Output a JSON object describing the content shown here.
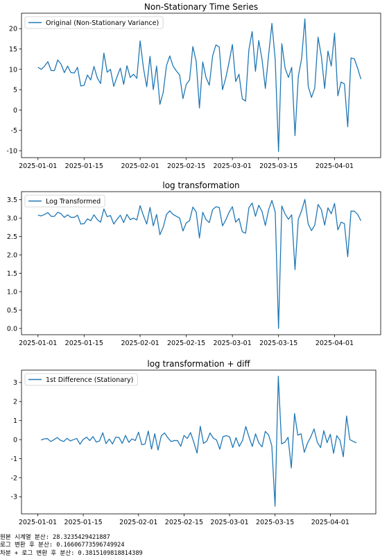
{
  "colors": {
    "line": "#1f77b4",
    "axis": "#000000"
  },
  "chart_data": [
    {
      "type": "line",
      "title": "Non-Stationary Time Series",
      "x_start": "2025-01-01",
      "x_end": "2025-04-10",
      "xticks": [
        "2025-01-01",
        "2025-01-15",
        "2025-02-01",
        "2025-02-15",
        "2025-03-01",
        "2025-03-15",
        "2025-04-01"
      ],
      "xlim": [
        "2024-12-27",
        "2025-04-15"
      ],
      "ylim": [
        -11.7,
        23.8
      ],
      "yticks": [
        -10,
        -5,
        0,
        5,
        10,
        15,
        20
      ],
      "legend": "upper left",
      "series": [
        {
          "name": "Original (Non-Stationary Variance)",
          "values": [
            10.5,
            10.0,
            10.8,
            11.9,
            9.7,
            9.7,
            12.3,
            11.3,
            9.2,
            10.8,
            9.2,
            9.1,
            10.5,
            5.9,
            6.1,
            8.6,
            7.4,
            10.7,
            7.9,
            6.5,
            14.0,
            9.3,
            10.0,
            5.8,
            8.2,
            10.3,
            6.3,
            10.9,
            8.0,
            8.8,
            7.8,
            17.0,
            10.4,
            5.7,
            13.2,
            5.0,
            10.8,
            1.4,
            4.3,
            10.9,
            13.3,
            10.8,
            9.6,
            8.6,
            2.8,
            6.3,
            7.4,
            15.6,
            12.0,
            0.5,
            11.8,
            8.0,
            6.1,
            13.3,
            16.0,
            15.5,
            5.0,
            7.9,
            11.8,
            16.1,
            7.0,
            8.8,
            2.8,
            2.2,
            14.8,
            19.3,
            9.5,
            17.1,
            12.4,
            5.3,
            13.6,
            21.3,
            12.3,
            -10.2,
            16.3,
            10.3,
            8.0,
            10.5,
            -6.3,
            8.2,
            12.6,
            22.4,
            5.9,
            3.1,
            5.4,
            17.9,
            13.2,
            5.3,
            14.5,
            10.8,
            18.9,
            3.5,
            6.9,
            6.4,
            -4.1,
            12.8,
            12.6,
            10.3,
            7.6
          ]
        }
      ]
    },
    {
      "type": "line",
      "title": "log transformation",
      "x_start": "2025-01-01",
      "x_end": "2025-04-10",
      "xticks": [
        "2025-01-01",
        "2025-01-15",
        "2025-02-01",
        "2025-02-15",
        "2025-03-01",
        "2025-03-15",
        "2025-04-01"
      ],
      "xlim": [
        "2024-12-27",
        "2025-04-15"
      ],
      "ylim": [
        -0.17,
        3.72
      ],
      "yticks": [
        0.0,
        0.5,
        1.0,
        1.5,
        2.0,
        2.5,
        3.0,
        3.5
      ],
      "legend": "upper left",
      "series": [
        {
          "name": "Log Transformed",
          "values": [
            3.08,
            3.06,
            3.1,
            3.15,
            3.05,
            3.05,
            3.16,
            3.12,
            3.02,
            3.09,
            3.02,
            3.02,
            3.08,
            2.84,
            2.85,
            2.98,
            2.93,
            3.09,
            2.96,
            2.89,
            3.25,
            3.04,
            3.07,
            2.84,
            2.97,
            3.08,
            2.88,
            3.1,
            2.96,
            3.0,
            2.95,
            3.34,
            3.07,
            2.84,
            3.29,
            2.79,
            3.1,
            2.55,
            2.75,
            3.1,
            3.2,
            3.1,
            3.05,
            3.0,
            2.65,
            2.87,
            2.93,
            3.3,
            3.17,
            2.46,
            3.16,
            2.96,
            2.88,
            3.23,
            3.31,
            3.29,
            2.79,
            2.95,
            3.16,
            3.31,
            2.89,
            2.99,
            2.63,
            2.59,
            3.28,
            3.41,
            3.05,
            3.35,
            3.18,
            2.8,
            3.23,
            3.48,
            3.16,
            0.0,
            3.33,
            3.11,
            2.97,
            3.09,
            1.6,
            2.97,
            3.2,
            3.51,
            2.84,
            2.66,
            2.81,
            3.37,
            3.23,
            2.81,
            3.28,
            3.12,
            3.4,
            2.68,
            2.89,
            2.85,
            1.95,
            3.19,
            3.19,
            3.1,
            2.93
          ]
        }
      ]
    },
    {
      "type": "line",
      "title": "log transformation + diff",
      "x_start": "2025-01-02",
      "x_end": "2025-04-10",
      "xticks": [
        "2025-01-01",
        "2025-01-15",
        "2025-02-01",
        "2025-02-15",
        "2025-03-01",
        "2025-03-15",
        "2025-04-01"
      ],
      "xlim": [
        "2024-12-27",
        "2025-04-15"
      ],
      "ylim": [
        -3.9,
        3.65
      ],
      "yticks": [
        -3,
        -2,
        -1,
        0,
        1,
        2,
        3
      ],
      "legend": "upper left",
      "series": [
        {
          "name": "1st Difference (Stationary)",
          "values": [
            -0.02,
            0.04,
            0.05,
            -0.1,
            0.0,
            0.11,
            -0.04,
            -0.1,
            0.07,
            -0.07,
            0.0,
            0.06,
            -0.24,
            0.01,
            0.13,
            -0.05,
            0.16,
            -0.13,
            -0.07,
            0.36,
            -0.21,
            0.03,
            -0.23,
            0.13,
            0.11,
            -0.2,
            0.22,
            -0.14,
            0.04,
            -0.05,
            0.39,
            -0.27,
            -0.23,
            0.45,
            -0.5,
            0.31,
            -0.55,
            0.2,
            0.35,
            0.1,
            -0.1,
            -0.05,
            -0.05,
            -0.35,
            0.22,
            0.06,
            0.37,
            -0.13,
            -0.71,
            0.7,
            -0.2,
            -0.08,
            0.35,
            0.08,
            -0.02,
            -0.5,
            0.16,
            0.21,
            0.15,
            -0.42,
            0.1,
            -0.36,
            -0.04,
            0.69,
            0.13,
            -0.36,
            0.3,
            -0.17,
            -0.38,
            0.43,
            0.25,
            -0.32,
            -3.5,
            3.33,
            -0.22,
            -0.14,
            0.12,
            -1.49,
            1.37,
            0.23,
            0.31,
            -0.67,
            -0.18,
            0.15,
            0.56,
            -0.14,
            -0.42,
            0.47,
            -0.16,
            0.28,
            -0.72,
            0.21,
            -0.04,
            -0.9,
            1.24,
            0.0,
            -0.09,
            -0.17
          ]
        }
      ]
    }
  ],
  "footer": {
    "line1": "원본 시계열 분산: 28.3235429421887",
    "line2": "로그 변환 후 분산: 0.16606773596749924",
    "line3": "차분 + 로그 변환 후 분산: 0.3815109818814389"
  }
}
